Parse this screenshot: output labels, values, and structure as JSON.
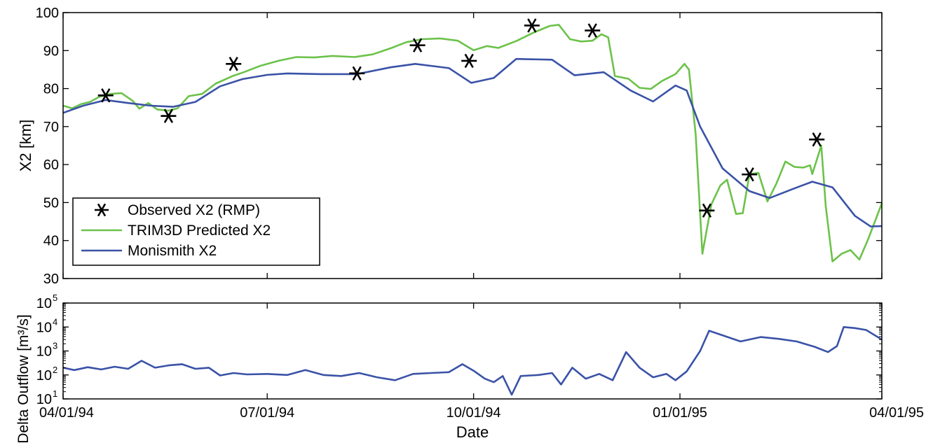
{
  "chart_data": [
    {
      "type": "line",
      "ylabel": "X2 [km]",
      "xlim": [
        "1994-04-01",
        "1995-04-01"
      ],
      "ylim": [
        30,
        100
      ],
      "yticks": [
        30,
        40,
        50,
        60,
        70,
        80,
        90,
        100
      ],
      "grid": false,
      "legend_position": "bottom-left",
      "series": [
        {
          "name": "Observed X2 (RMP)",
          "style": "star-markers",
          "color": "#000000",
          "points": [
            {
              "x": "1994-04-20",
              "y": 78.2
            },
            {
              "x": "1994-05-18",
              "y": 72.8
            },
            {
              "x": "1994-06-16",
              "y": 86.5
            },
            {
              "x": "1994-08-10",
              "y": 84.0
            },
            {
              "x": "1994-09-06",
              "y": 91.4
            },
            {
              "x": "1994-09-29",
              "y": 87.3
            },
            {
              "x": "1994-10-27",
              "y": 96.6
            },
            {
              "x": "1994-11-23",
              "y": 95.3
            },
            {
              "x": "1995-01-13",
              "y": 47.9
            },
            {
              "x": "1995-02-01",
              "y": 57.4
            },
            {
              "x": "1995-03-03",
              "y": 66.6
            }
          ]
        },
        {
          "name": "TRIM3D Predicted X2",
          "style": "line",
          "color": "#6cc24a",
          "points": [
            {
              "x": "1994-04-01",
              "y": 75.5
            },
            {
              "x": "1994-04-05",
              "y": 74.8
            },
            {
              "x": "1994-04-09",
              "y": 75.9
            },
            {
              "x": "1994-04-13",
              "y": 76.5
            },
            {
              "x": "1994-04-17",
              "y": 77.8
            },
            {
              "x": "1994-04-22",
              "y": 78.6
            },
            {
              "x": "1994-04-27",
              "y": 78.8
            },
            {
              "x": "1994-05-02",
              "y": 76.8
            },
            {
              "x": "1994-05-05",
              "y": 74.7
            },
            {
              "x": "1994-05-09",
              "y": 76.2
            },
            {
              "x": "1994-05-13",
              "y": 74.5
            },
            {
              "x": "1994-05-18",
              "y": 74.2
            },
            {
              "x": "1994-05-22",
              "y": 74.8
            },
            {
              "x": "1994-05-27",
              "y": 78.0
            },
            {
              "x": "1994-06-02",
              "y": 78.6
            },
            {
              "x": "1994-06-08",
              "y": 81.3
            },
            {
              "x": "1994-06-16",
              "y": 83.4
            },
            {
              "x": "1994-06-20",
              "y": 84.2
            },
            {
              "x": "1994-06-28",
              "y": 86.0
            },
            {
              "x": "1994-07-06",
              "y": 87.3
            },
            {
              "x": "1994-07-14",
              "y": 88.3
            },
            {
              "x": "1994-07-22",
              "y": 88.2
            },
            {
              "x": "1994-07-30",
              "y": 88.6
            },
            {
              "x": "1994-08-09",
              "y": 88.3
            },
            {
              "x": "1994-08-17",
              "y": 89.0
            },
            {
              "x": "1994-08-25",
              "y": 90.6
            },
            {
              "x": "1994-09-01",
              "y": 92.2
            },
            {
              "x": "1994-09-08",
              "y": 93.0
            },
            {
              "x": "1994-09-16",
              "y": 93.2
            },
            {
              "x": "1994-09-24",
              "y": 92.6
            },
            {
              "x": "1994-10-01",
              "y": 90.1
            },
            {
              "x": "1994-10-07",
              "y": 91.2
            },
            {
              "x": "1994-10-12",
              "y": 90.7
            },
            {
              "x": "1994-10-20",
              "y": 92.5
            },
            {
              "x": "1994-10-28",
              "y": 94.8
            },
            {
              "x": "1994-11-04",
              "y": 96.5
            },
            {
              "x": "1994-11-08",
              "y": 96.8
            },
            {
              "x": "1994-11-13",
              "y": 93.0
            },
            {
              "x": "1994-11-18",
              "y": 92.4
            },
            {
              "x": "1994-11-23",
              "y": 92.6
            },
            {
              "x": "1994-11-27",
              "y": 94.3
            },
            {
              "x": "1994-11-30",
              "y": 93.5
            },
            {
              "x": "1994-12-03",
              "y": 83.3
            },
            {
              "x": "1994-12-09",
              "y": 82.6
            },
            {
              "x": "1994-12-14",
              "y": 80.2
            },
            {
              "x": "1994-12-19",
              "y": 79.9
            },
            {
              "x": "1994-12-24",
              "y": 82.0
            },
            {
              "x": "1994-12-30",
              "y": 83.8
            },
            {
              "x": "1995-01-03",
              "y": 86.5
            },
            {
              "x": "1995-01-05",
              "y": 85.0
            },
            {
              "x": "1995-01-08",
              "y": 68.0
            },
            {
              "x": "1995-01-11",
              "y": 36.5
            },
            {
              "x": "1995-01-15",
              "y": 49.5
            },
            {
              "x": "1995-01-19",
              "y": 54.5
            },
            {
              "x": "1995-01-22",
              "y": 56.0
            },
            {
              "x": "1995-01-26",
              "y": 47.0
            },
            {
              "x": "1995-01-29",
              "y": 47.2
            },
            {
              "x": "1995-02-01",
              "y": 57.5
            },
            {
              "x": "1995-02-05",
              "y": 57.8
            },
            {
              "x": "1995-02-09",
              "y": 50.3
            },
            {
              "x": "1995-02-13",
              "y": 55.0
            },
            {
              "x": "1995-02-17",
              "y": 60.8
            },
            {
              "x": "1995-02-21",
              "y": 59.4
            },
            {
              "x": "1995-02-25",
              "y": 59.2
            },
            {
              "x": "1995-02-28",
              "y": 59.8
            },
            {
              "x": "1995-03-01",
              "y": 57.5
            },
            {
              "x": "1995-03-05",
              "y": 65.0
            },
            {
              "x": "1995-03-07",
              "y": 49.0
            },
            {
              "x": "1995-03-10",
              "y": 34.5
            },
            {
              "x": "1995-03-14",
              "y": 36.5
            },
            {
              "x": "1995-03-18",
              "y": 37.5
            },
            {
              "x": "1995-03-22",
              "y": 35.0
            },
            {
              "x": "1995-03-26",
              "y": 40.5
            },
            {
              "x": "1995-04-01",
              "y": 49.8
            }
          ]
        },
        {
          "name": "Monismith X2",
          "style": "line",
          "color": "#3a52a7",
          "points": [
            {
              "x": "1994-04-01",
              "y": 73.6
            },
            {
              "x": "1994-04-10",
              "y": 75.5
            },
            {
              "x": "1994-04-20",
              "y": 77.0
            },
            {
              "x": "1994-04-30",
              "y": 76.2
            },
            {
              "x": "1994-05-10",
              "y": 75.5
            },
            {
              "x": "1994-05-20",
              "y": 75.2
            },
            {
              "x": "1994-05-30",
              "y": 76.5
            },
            {
              "x": "1994-06-10",
              "y": 80.6
            },
            {
              "x": "1994-06-20",
              "y": 82.5
            },
            {
              "x": "1994-07-01",
              "y": 83.6
            },
            {
              "x": "1994-07-10",
              "y": 84.0
            },
            {
              "x": "1994-07-25",
              "y": 83.8
            },
            {
              "x": "1994-08-10",
              "y": 83.8
            },
            {
              "x": "1994-08-25",
              "y": 85.6
            },
            {
              "x": "1994-09-05",
              "y": 86.5
            },
            {
              "x": "1994-09-20",
              "y": 85.4
            },
            {
              "x": "1994-09-30",
              "y": 81.5
            },
            {
              "x": "1994-10-10",
              "y": 82.8
            },
            {
              "x": "1994-10-20",
              "y": 87.8
            },
            {
              "x": "1994-11-05",
              "y": 87.6
            },
            {
              "x": "1994-11-15",
              "y": 83.5
            },
            {
              "x": "1994-11-28",
              "y": 84.3
            },
            {
              "x": "1994-12-10",
              "y": 79.5
            },
            {
              "x": "1994-12-20",
              "y": 76.6
            },
            {
              "x": "1994-12-30",
              "y": 80.8
            },
            {
              "x": "1995-01-04",
              "y": 79.5
            },
            {
              "x": "1995-01-10",
              "y": 70.0
            },
            {
              "x": "1995-01-20",
              "y": 59.0
            },
            {
              "x": "1995-02-01",
              "y": 53.0
            },
            {
              "x": "1995-02-10",
              "y": 51.2
            },
            {
              "x": "1995-02-20",
              "y": 53.5
            },
            {
              "x": "1995-03-01",
              "y": 55.5
            },
            {
              "x": "1995-03-10",
              "y": 54.0
            },
            {
              "x": "1995-03-20",
              "y": 46.5
            },
            {
              "x": "1995-03-27",
              "y": 43.7
            },
            {
              "x": "1995-04-01",
              "y": 43.8
            }
          ]
        }
      ]
    },
    {
      "type": "line",
      "yscale": "log",
      "ylabel": "Delta Outflow [m³/s]",
      "xlabel": "Date",
      "xlim": [
        "1994-04-01",
        "1995-04-01"
      ],
      "ylim": [
        10,
        100000
      ],
      "yticks": [
        {
          "value": 10,
          "base": "10",
          "exp": "1"
        },
        {
          "value": 100,
          "base": "10",
          "exp": "2"
        },
        {
          "value": 1000,
          "base": "10",
          "exp": "3"
        },
        {
          "value": 10000,
          "base": "10",
          "exp": "4"
        },
        {
          "value": 100000,
          "base": "10",
          "exp": "5"
        }
      ],
      "xticks": [
        {
          "value": "1994-04-01",
          "label": "04/01/94"
        },
        {
          "value": "1994-07-01",
          "label": "07/01/94"
        },
        {
          "value": "1994-10-01",
          "label": "10/01/94"
        },
        {
          "value": "1995-01-01",
          "label": "01/01/95"
        },
        {
          "value": "1995-04-01",
          "label": "04/01/95"
        }
      ],
      "grid": false,
      "series": [
        {
          "style": "line",
          "color": "#3a52a7",
          "points": [
            {
              "x": "1994-04-01",
              "y": 200
            },
            {
              "x": "1994-04-06",
              "y": 160
            },
            {
              "x": "1994-04-12",
              "y": 210
            },
            {
              "x": "1994-04-18",
              "y": 170
            },
            {
              "x": "1994-04-24",
              "y": 220
            },
            {
              "x": "1994-04-30",
              "y": 180
            },
            {
              "x": "1994-05-06",
              "y": 390
            },
            {
              "x": "1994-05-12",
              "y": 200
            },
            {
              "x": "1994-05-18",
              "y": 250
            },
            {
              "x": "1994-05-24",
              "y": 280
            },
            {
              "x": "1994-05-30",
              "y": 180
            },
            {
              "x": "1994-06-05",
              "y": 200
            },
            {
              "x": "1994-06-10",
              "y": 95
            },
            {
              "x": "1994-06-16",
              "y": 120
            },
            {
              "x": "1994-06-22",
              "y": 105
            },
            {
              "x": "1994-07-01",
              "y": 110
            },
            {
              "x": "1994-07-10",
              "y": 100
            },
            {
              "x": "1994-07-18",
              "y": 160
            },
            {
              "x": "1994-07-26",
              "y": 100
            },
            {
              "x": "1994-08-03",
              "y": 90
            },
            {
              "x": "1994-08-11",
              "y": 120
            },
            {
              "x": "1994-08-19",
              "y": 80
            },
            {
              "x": "1994-08-27",
              "y": 60
            },
            {
              "x": "1994-09-04",
              "y": 110
            },
            {
              "x": "1994-09-12",
              "y": 120
            },
            {
              "x": "1994-09-20",
              "y": 130
            },
            {
              "x": "1994-09-26",
              "y": 280
            },
            {
              "x": "1994-10-01",
              "y": 150
            },
            {
              "x": "1994-10-06",
              "y": 70
            },
            {
              "x": "1994-10-10",
              "y": 50
            },
            {
              "x": "1994-10-14",
              "y": 90
            },
            {
              "x": "1994-10-18",
              "y": 15
            },
            {
              "x": "1994-10-22",
              "y": 90
            },
            {
              "x": "1994-10-30",
              "y": 100
            },
            {
              "x": "1994-11-05",
              "y": 120
            },
            {
              "x": "1994-11-09",
              "y": 40
            },
            {
              "x": "1994-11-14",
              "y": 200
            },
            {
              "x": "1994-11-20",
              "y": 70
            },
            {
              "x": "1994-11-26",
              "y": 110
            },
            {
              "x": "1994-12-02",
              "y": 60
            },
            {
              "x": "1994-12-08",
              "y": 900
            },
            {
              "x": "1994-12-14",
              "y": 200
            },
            {
              "x": "1994-12-20",
              "y": 80
            },
            {
              "x": "1994-12-26",
              "y": 110
            },
            {
              "x": "1994-12-30",
              "y": 60
            },
            {
              "x": "1995-01-04",
              "y": 140
            },
            {
              "x": "1995-01-10",
              "y": 1000
            },
            {
              "x": "1995-01-14",
              "y": 7000
            },
            {
              "x": "1995-01-20",
              "y": 4500
            },
            {
              "x": "1995-01-28",
              "y": 2500
            },
            {
              "x": "1995-02-06",
              "y": 3800
            },
            {
              "x": "1995-02-14",
              "y": 3200
            },
            {
              "x": "1995-02-22",
              "y": 2500
            },
            {
              "x": "1995-03-02",
              "y": 1500
            },
            {
              "x": "1995-03-08",
              "y": 900
            },
            {
              "x": "1995-03-12",
              "y": 1600
            },
            {
              "x": "1995-03-15",
              "y": 10000
            },
            {
              "x": "1995-03-20",
              "y": 9000
            },
            {
              "x": "1995-03-25",
              "y": 7500
            },
            {
              "x": "1995-04-01",
              "y": 3000
            }
          ]
        }
      ]
    }
  ]
}
